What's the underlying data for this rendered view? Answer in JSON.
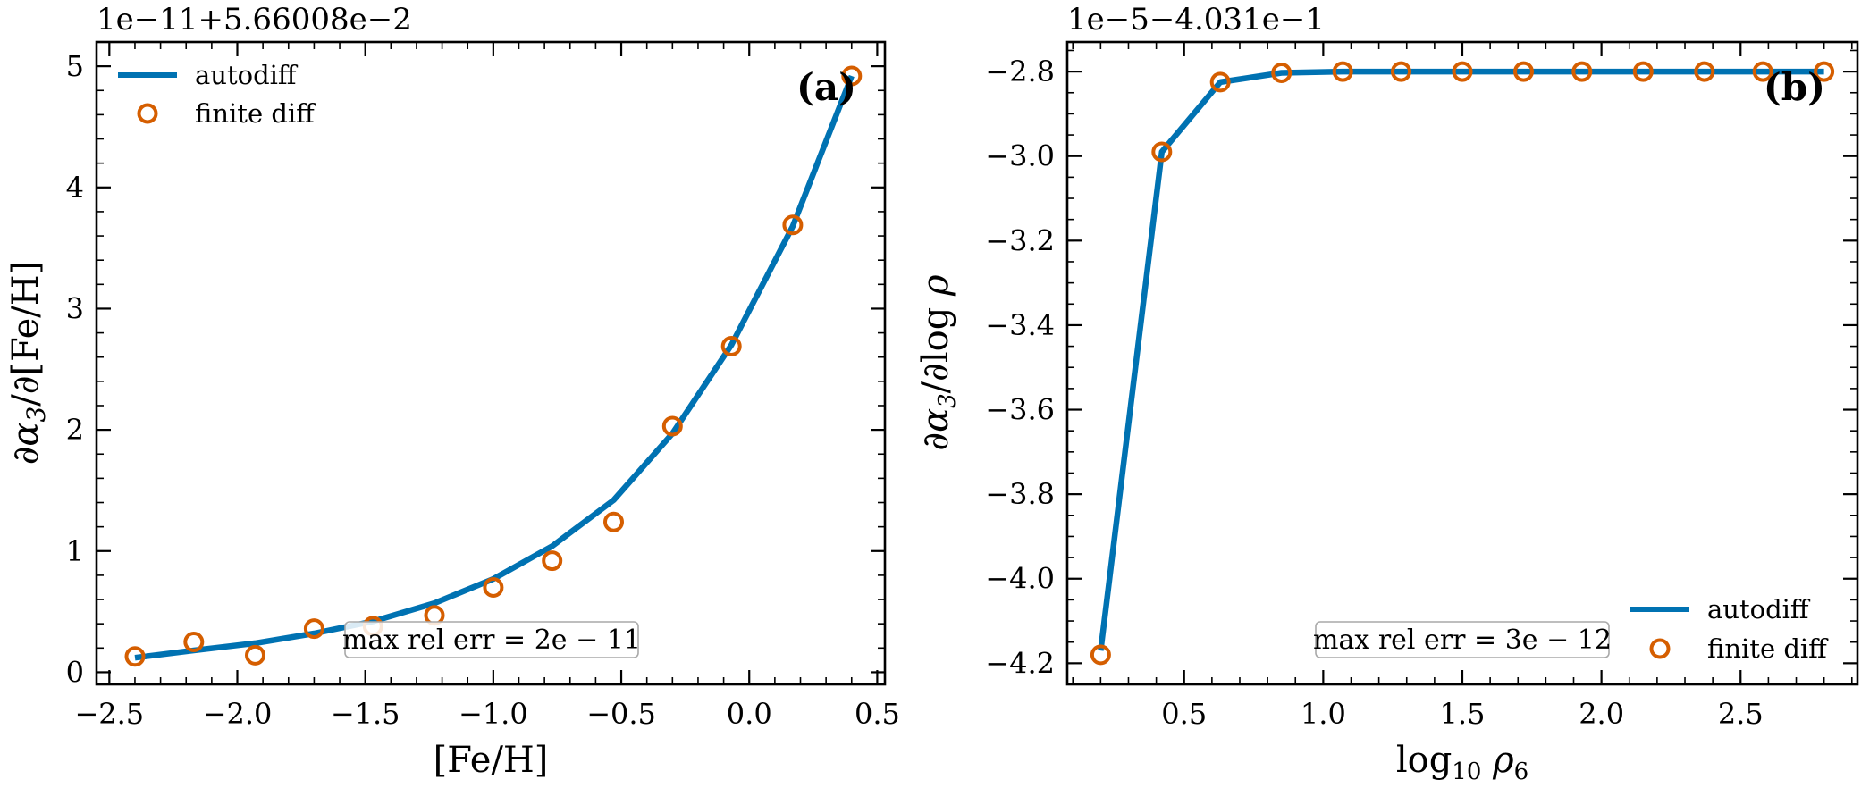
{
  "colors": {
    "autodiff": "#0072b2",
    "finite_diff": "#d55e00",
    "axes": "#000000",
    "errbox_edge": "#a9a9a9"
  },
  "chart_data": [
    {
      "type": "line",
      "panel_tag": "(a)",
      "offset_text": "1e−11+5.66008e−2",
      "xlabel": "[Fe/H]",
      "ylabel": "∂α₃/∂[Fe/H]",
      "xlim": [
        -2.55,
        0.53
      ],
      "ylim": [
        -0.1,
        5.2
      ],
      "xticks": [
        -2.5,
        -2.0,
        -1.5,
        -1.0,
        -0.5,
        0.0,
        0.5
      ],
      "xtick_labels": [
        "−2.5",
        "−2.0",
        "−1.5",
        "−1.0",
        "−0.5",
        "0.0",
        "0.5"
      ],
      "yticks": [
        0,
        1,
        2,
        3,
        4,
        5
      ],
      "ytick_labels": [
        "0",
        "1",
        "2",
        "3",
        "4",
        "5"
      ],
      "legend_position": "upper left",
      "error_text": "max rel err = 2e − 11",
      "series": [
        {
          "name": "autodiff",
          "style": "line",
          "x": [
            -2.4,
            -2.17,
            -1.93,
            -1.7,
            -1.47,
            -1.23,
            -1.0,
            -0.77,
            -0.53,
            -0.3,
            -0.07,
            0.17,
            0.4
          ],
          "values": [
            0.12,
            0.18,
            0.24,
            0.32,
            0.42,
            0.57,
            0.77,
            1.04,
            1.42,
            1.97,
            2.7,
            3.68,
            4.92
          ]
        },
        {
          "name": "finite diff",
          "style": "markers",
          "x": [
            -2.4,
            -2.17,
            -1.93,
            -1.7,
            -1.47,
            -1.23,
            -1.0,
            -0.77,
            -0.53,
            -0.3,
            -0.07,
            0.17,
            0.4
          ],
          "values": [
            0.13,
            0.25,
            0.14,
            0.36,
            0.38,
            0.47,
            0.7,
            0.92,
            1.24,
            2.03,
            2.69,
            3.69,
            4.92
          ]
        }
      ]
    },
    {
      "type": "line",
      "panel_tag": "(b)",
      "offset_text": "1e−5−4.031e−1",
      "xlabel": "log₁₀ ρ₆",
      "ylabel": "∂α₃/∂log ρ",
      "xlim": [
        0.08,
        2.92
      ],
      "ylim": [
        -4.25,
        -2.73
      ],
      "xticks": [
        0.5,
        1.0,
        1.5,
        2.0,
        2.5
      ],
      "xtick_labels": [
        "0.5",
        "1.0",
        "1.5",
        "2.0",
        "2.5"
      ],
      "yticks": [
        -2.8,
        -3.0,
        -3.2,
        -3.4,
        -3.6,
        -3.8,
        -4.0,
        -4.2
      ],
      "ytick_labels": [
        "−2.8",
        "−3.0",
        "−3.2",
        "−3.4",
        "−3.6",
        "−3.8",
        "−4.0",
        "−4.2"
      ],
      "legend_position": "lower right",
      "error_text": "max rel err = 3e − 12",
      "series": [
        {
          "name": "autodiff",
          "style": "line",
          "x": [
            0.2,
            0.42,
            0.63,
            0.85,
            1.07,
            1.28,
            1.5,
            1.72,
            1.93,
            2.15,
            2.37,
            2.58,
            2.8
          ],
          "values": [
            -4.17,
            -2.99,
            -2.825,
            -2.803,
            -2.8,
            -2.8,
            -2.8,
            -2.8,
            -2.8,
            -2.8,
            -2.8,
            -2.8,
            -2.8
          ]
        },
        {
          "name": "finite diff",
          "style": "markers",
          "x": [
            0.2,
            0.42,
            0.63,
            0.85,
            1.07,
            1.28,
            1.5,
            1.72,
            1.93,
            2.15,
            2.37,
            2.58,
            2.8
          ],
          "values": [
            -4.18,
            -2.99,
            -2.825,
            -2.803,
            -2.8,
            -2.8,
            -2.8,
            -2.8,
            -2.8,
            -2.8,
            -2.8,
            -2.8,
            -2.8
          ]
        }
      ]
    }
  ]
}
